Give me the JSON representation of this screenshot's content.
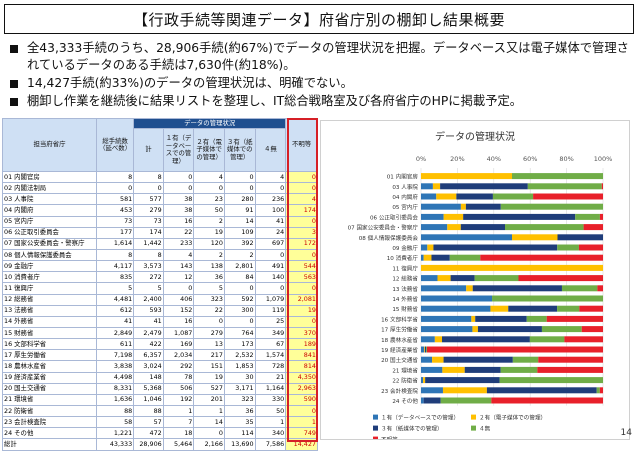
{
  "slide_title": "【行政手続等関連データ】府省庁別の棚卸し結果概要",
  "bullets": [
    "全43,333手続のうち、28,906手続(約67%)でデータの管理状況を把握。データベース又は電子媒体で管理されているデータのある手続は7,630件(約18%)。",
    "14,427手続(約33%)のデータの管理状況は、明確でない。",
    "棚卸し作業を継続後に結果リストを整理し、IT総合戦略室及び各府省庁のHPに掲載予定。"
  ],
  "page_number": "14",
  "table": {
    "group_header": "データの管理状況",
    "headers": {
      "ministry": "担当府省庁",
      "total": "総手続数（延べ数）",
      "sum": "計",
      "c1": "１有（データベースでの管理）",
      "c2": "２有（電子媒体での管理）",
      "c3": "３有（紙媒体での管理）",
      "c4": "４無",
      "unclear": "不明等"
    },
    "rows": [
      [
        "01 内閣官房",
        "8",
        "8",
        "0",
        "4",
        "0",
        "4",
        "0"
      ],
      [
        "02 内閣法制局",
        "0",
        "0",
        "0",
        "0",
        "0",
        "0",
        "0"
      ],
      [
        "03 人事院",
        "581",
        "577",
        "38",
        "23",
        "280",
        "236",
        "4"
      ],
      [
        "04 内閣府",
        "453",
        "279",
        "38",
        "50",
        "91",
        "100",
        "174"
      ],
      [
        "05 宮内庁",
        "73",
        "73",
        "16",
        "2",
        "14",
        "41",
        "0"
      ],
      [
        "06 公正取引委員会",
        "177",
        "174",
        "22",
        "19",
        "109",
        "24",
        "3"
      ],
      [
        "07 国家公安委員会・警察庁",
        "1,614",
        "1,442",
        "233",
        "120",
        "392",
        "697",
        "172"
      ],
      [
        "08 個人情報保護委員会",
        "8",
        "8",
        "4",
        "2",
        "2",
        "0",
        "0"
      ],
      [
        "09 金融庁",
        "4,117",
        "3,573",
        "143",
        "138",
        "2,801",
        "491",
        "544"
      ],
      [
        "10 消費者庁",
        "835",
        "272",
        "12",
        "36",
        "84",
        "140",
        "563"
      ],
      [
        "11 復興庁",
        "5",
        "5",
        "0",
        "5",
        "0",
        "0",
        "0"
      ],
      [
        "12 総務省",
        "4,481",
        "2,400",
        "406",
        "323",
        "592",
        "1,079",
        "2,081"
      ],
      [
        "13 法務省",
        "612",
        "593",
        "152",
        "22",
        "300",
        "119",
        "19"
      ],
      [
        "14 外務省",
        "41",
        "41",
        "16",
        "0",
        "0",
        "25",
        "0"
      ],
      [
        "15 財務省",
        "2,849",
        "2,479",
        "1,087",
        "279",
        "764",
        "349",
        "370"
      ],
      [
        "16 文部科学省",
        "611",
        "422",
        "169",
        "13",
        "173",
        "67",
        "189"
      ],
      [
        "17 厚生労働省",
        "7,198",
        "6,357",
        "2,034",
        "217",
        "2,532",
        "1,574",
        "841"
      ],
      [
        "18 農林水産省",
        "3,838",
        "3,024",
        "292",
        "151",
        "1,853",
        "728",
        "814"
      ],
      [
        "19 経済産業省",
        "4,498",
        "148",
        "78",
        "19",
        "30",
        "21",
        "4,350"
      ],
      [
        "20 国土交通省",
        "8,331",
        "5,368",
        "506",
        "527",
        "3,171",
        "1,164",
        "2,963"
      ],
      [
        "21 環境省",
        "1,636",
        "1,046",
        "192",
        "201",
        "323",
        "330",
        "590"
      ],
      [
        "22 防衛省",
        "88",
        "88",
        "1",
        "1",
        "36",
        "50",
        "0"
      ],
      [
        "23 会計検査院",
        "58",
        "57",
        "7",
        "14",
        "35",
        "1",
        "1"
      ],
      [
        "24 その他",
        "1,221",
        "472",
        "18",
        "0",
        "114",
        "340",
        "749"
      ]
    ],
    "total_row": [
      "総計",
      "43,333",
      "28,906",
      "5,464",
      "2,166",
      "13,690",
      "7,586",
      "14,427"
    ]
  },
  "chart_data": {
    "type": "bar",
    "orientation": "horizontal",
    "stacked": "percent",
    "title": "データの管理状況",
    "x_ticks": [
      "0%",
      "20%",
      "40%",
      "60%",
      "80%",
      "100%"
    ],
    "xlim": [
      0,
      100
    ],
    "legend_position": "bottom",
    "categories": [
      "01 内閣官房",
      "03 人事院",
      "04 内閣府",
      "05 宮内庁",
      "06 公正取引委員会",
      "07 国家公安委員会・警察庁",
      "08 個人情報保護委員会",
      "09 金融庁",
      "10 消費者庁",
      "11 復興庁",
      "12 総務省",
      "13 法務省",
      "14 外務省",
      "15 財務省",
      "16 文部科学省",
      "17 厚生労働省",
      "18 農林水産省",
      "19 経済産業省",
      "20 国土交通省",
      "21 環境省",
      "22 防衛省",
      "23 会計検査院",
      "24 その他"
    ],
    "series": [
      {
        "name": "１有（データベースでの管理）",
        "color": "#2e75b6",
        "values": [
          0,
          38,
          38,
          16,
          22,
          233,
          4,
          143,
          12,
          0,
          406,
          152,
          16,
          1087,
          169,
          2034,
          292,
          78,
          506,
          192,
          1,
          7,
          18
        ]
      },
      {
        "name": "２有（電子媒体での管理）",
        "color": "#ffc000",
        "values": [
          4,
          23,
          50,
          2,
          19,
          120,
          2,
          138,
          36,
          5,
          323,
          22,
          0,
          279,
          13,
          217,
          151,
          19,
          527,
          201,
          1,
          14,
          0
        ]
      },
      {
        "name": "３有（紙媒体での管理）",
        "color": "#1f3d7a",
        "values": [
          0,
          280,
          91,
          14,
          109,
          392,
          2,
          2801,
          84,
          0,
          592,
          300,
          0,
          764,
          173,
          2532,
          1853,
          30,
          3171,
          323,
          36,
          35,
          114
        ]
      },
      {
        "name": "４無",
        "color": "#70ad47",
        "values": [
          4,
          236,
          100,
          41,
          24,
          697,
          0,
          491,
          140,
          0,
          1079,
          119,
          25,
          349,
          67,
          1574,
          728,
          21,
          1164,
          330,
          50,
          1,
          340
        ]
      },
      {
        "name": "不明等",
        "color": "#e8202a",
        "values": [
          0,
          4,
          174,
          0,
          3,
          172,
          0,
          544,
          563,
          0,
          2081,
          19,
          0,
          370,
          189,
          841,
          814,
          4350,
          2963,
          590,
          0,
          1,
          749
        ]
      }
    ]
  }
}
